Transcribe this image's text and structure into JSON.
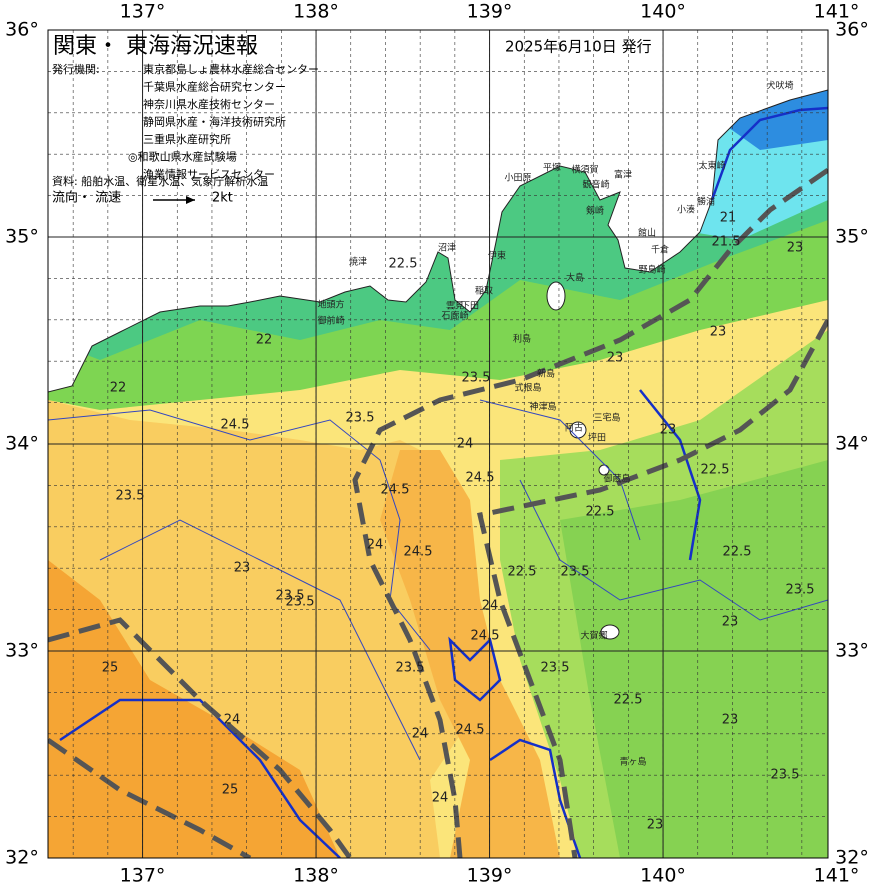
{
  "header": {
    "title": "関東・ 東海海況速報",
    "issue_date": "2025年6月10日 発行",
    "issuer_label": "発行機関:",
    "issuers": [
      "東京都島しょ農林水産総合センター",
      "千葉県水産総合研究センター",
      "神奈川県水産技術センター",
      "静岡県水産・海洋技術研究所",
      "三重県水産研究所",
      "◎和歌山県水産試験場",
      "漁業情報サービスセンター"
    ],
    "source": "資料: 船舶水温、衛星水温、気象庁解析水温",
    "flow_label": "流向・ 流速",
    "flow_scale": "2kt"
  },
  "map": {
    "longitude_ticks": [
      {
        "value": 137,
        "label": "137°"
      },
      {
        "value": 138,
        "label": "138°"
      },
      {
        "value": 139,
        "label": "139°"
      },
      {
        "value": 140,
        "label": "140°"
      },
      {
        "value": 141,
        "label": "141°"
      }
    ],
    "latitude_ticks": [
      {
        "value": 32,
        "label": "32°"
      },
      {
        "value": 33,
        "label": "33°"
      },
      {
        "value": 34,
        "label": "34°"
      },
      {
        "value": 35,
        "label": "35°"
      },
      {
        "value": 36,
        "label": "36°"
      }
    ],
    "place_names": [
      "犬吠埼",
      "太東崎",
      "勝浦",
      "小湊",
      "館山",
      "千倉",
      "野島崎",
      "富津",
      "観音崎",
      "剱崎",
      "横須賀",
      "平塚",
      "小田原",
      "伊東",
      "稲取",
      "下田",
      "雲見",
      "石廊崎",
      "沼津",
      "焼津",
      "地頭方",
      "御前崎",
      "大島",
      "利島",
      "新島",
      "式根島",
      "神津島",
      "三宅島",
      "阿古",
      "坪田",
      "御蔵島",
      "大賀郷",
      "青ヶ島"
    ],
    "contour_labels": [
      "21",
      "21.5",
      "22",
      "22.5",
      "23",
      "23",
      "23",
      "23",
      "23.5",
      "23.5",
      "23.5",
      "23.5",
      "24",
      "24",
      "24.5",
      "24.5",
      "24.5",
      "24",
      "23.5",
      "22.5",
      "22.5",
      "22.5",
      "23.5",
      "23",
      "23.5",
      "24.5",
      "24.5",
      "24",
      "24",
      "25",
      "25",
      "24",
      "24.5",
      "23.5",
      "23.5",
      "23",
      "23",
      "22.5",
      "23.5",
      "23",
      "22.5",
      "22"
    ]
  }
}
